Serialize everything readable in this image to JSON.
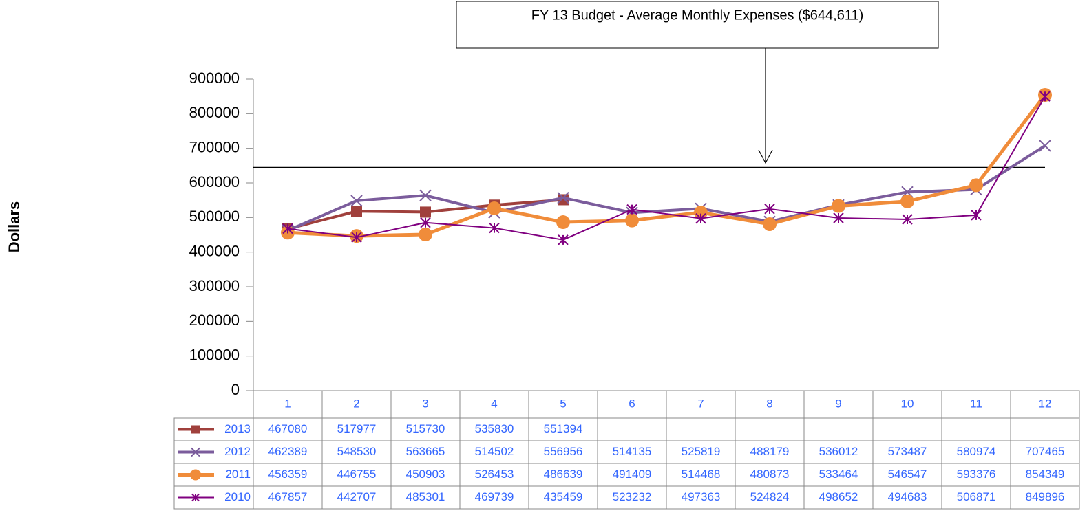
{
  "chart_data": {
    "type": "line",
    "annotation": "FY 13 Budget - Average Monthly Expenses   ($644,611)",
    "reference_value": 644611,
    "y_label": "Dollars",
    "categories": [
      "1",
      "2",
      "3",
      "4",
      "5",
      "6",
      "7",
      "8",
      "9",
      "10",
      "11",
      "12"
    ],
    "series": [
      {
        "name": "2013",
        "color": "#a0403c",
        "marker": "square",
        "values": [
          467080,
          517977,
          515730,
          535830,
          551394,
          null,
          null,
          null,
          null,
          null,
          null,
          null
        ]
      },
      {
        "name": "2012",
        "color": "#7b5c9c",
        "marker": "x",
        "values": [
          462389,
          548530,
          563665,
          514502,
          556956,
          514135,
          525819,
          488179,
          536012,
          573487,
          580974,
          707465
        ]
      },
      {
        "name": "2011",
        "color": "#f08c3a",
        "marker": "circle",
        "values": [
          456359,
          446755,
          450903,
          526453,
          486639,
          491409,
          514468,
          480873,
          533464,
          546547,
          593376,
          854349
        ]
      },
      {
        "name": "2010",
        "color": "#800080",
        "marker": "asterisk",
        "values": [
          467857,
          442707,
          485301,
          469739,
          435459,
          523232,
          497363,
          524824,
          498652,
          494683,
          506871,
          849896
        ]
      }
    ],
    "ylim": [
      0,
      900000
    ],
    "yticks": [
      0,
      100000,
      200000,
      300000,
      400000,
      500000,
      600000,
      700000,
      800000,
      900000
    ],
    "grid": false
  }
}
